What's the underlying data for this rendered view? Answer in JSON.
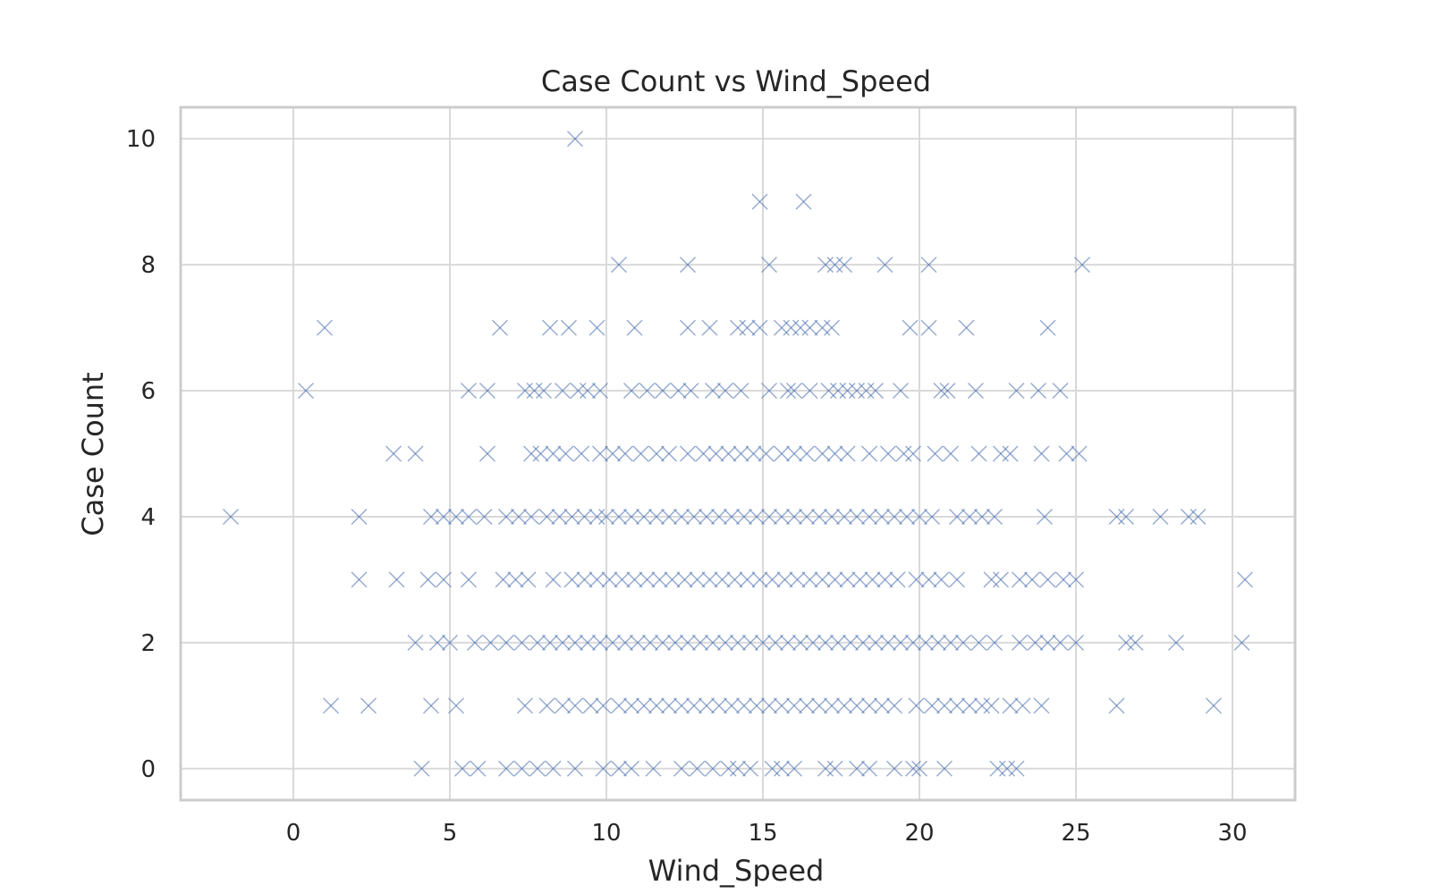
{
  "chart_data": {
    "type": "scatter",
    "title": "Case Count vs Wind_Speed",
    "xlabel": "Wind_Speed",
    "ylabel": "Case Count",
    "xlim": [
      -3.6,
      32
    ],
    "ylim": [
      -0.5,
      10.5
    ],
    "xticks": [
      0,
      5,
      10,
      15,
      20,
      25,
      30
    ],
    "yticks": [
      0,
      2,
      4,
      6,
      8,
      10
    ],
    "grid": true,
    "marker": "x",
    "color": "#4c72b0",
    "points": [
      {
        "x": 9.0,
        "y": 10
      },
      {
        "x": 14.9,
        "y": 9
      },
      {
        "x": 16.3,
        "y": 9
      },
      {
        "x": 10.4,
        "y": 8
      },
      {
        "x": 12.6,
        "y": 8
      },
      {
        "x": 15.2,
        "y": 8
      },
      {
        "x": 17.0,
        "y": 8
      },
      {
        "x": 17.3,
        "y": 8
      },
      {
        "x": 17.6,
        "y": 8
      },
      {
        "x": 18.9,
        "y": 8
      },
      {
        "x": 20.3,
        "y": 8
      },
      {
        "x": 25.2,
        "y": 8
      },
      {
        "x": 1.0,
        "y": 7
      },
      {
        "x": 6.6,
        "y": 7
      },
      {
        "x": 8.2,
        "y": 7
      },
      {
        "x": 8.8,
        "y": 7
      },
      {
        "x": 9.7,
        "y": 7
      },
      {
        "x": 10.9,
        "y": 7
      },
      {
        "x": 12.6,
        "y": 7
      },
      {
        "x": 13.3,
        "y": 7
      },
      {
        "x": 14.2,
        "y": 7
      },
      {
        "x": 14.5,
        "y": 7
      },
      {
        "x": 14.9,
        "y": 7
      },
      {
        "x": 15.6,
        "y": 7
      },
      {
        "x": 15.9,
        "y": 7
      },
      {
        "x": 16.2,
        "y": 7
      },
      {
        "x": 16.5,
        "y": 7
      },
      {
        "x": 16.9,
        "y": 7
      },
      {
        "x": 17.2,
        "y": 7
      },
      {
        "x": 19.7,
        "y": 7
      },
      {
        "x": 20.3,
        "y": 7
      },
      {
        "x": 21.5,
        "y": 7
      },
      {
        "x": 24.1,
        "y": 7
      },
      {
        "x": 0.4,
        "y": 6
      },
      {
        "x": 5.6,
        "y": 6
      },
      {
        "x": 6.2,
        "y": 6
      },
      {
        "x": 7.4,
        "y": 6
      },
      {
        "x": 7.7,
        "y": 6
      },
      {
        "x": 8.0,
        "y": 6
      },
      {
        "x": 8.6,
        "y": 6
      },
      {
        "x": 9.1,
        "y": 6
      },
      {
        "x": 9.4,
        "y": 6
      },
      {
        "x": 9.8,
        "y": 6
      },
      {
        "x": 10.8,
        "y": 6
      },
      {
        "x": 11.3,
        "y": 6
      },
      {
        "x": 11.8,
        "y": 6
      },
      {
        "x": 12.3,
        "y": 6
      },
      {
        "x": 12.7,
        "y": 6
      },
      {
        "x": 13.4,
        "y": 6
      },
      {
        "x": 13.8,
        "y": 6
      },
      {
        "x": 14.3,
        "y": 6
      },
      {
        "x": 15.2,
        "y": 6
      },
      {
        "x": 15.8,
        "y": 6
      },
      {
        "x": 16.0,
        "y": 6
      },
      {
        "x": 16.5,
        "y": 6
      },
      {
        "x": 17.1,
        "y": 6
      },
      {
        "x": 17.4,
        "y": 6
      },
      {
        "x": 17.7,
        "y": 6
      },
      {
        "x": 18.0,
        "y": 6
      },
      {
        "x": 18.3,
        "y": 6
      },
      {
        "x": 18.6,
        "y": 6
      },
      {
        "x": 19.4,
        "y": 6
      },
      {
        "x": 20.7,
        "y": 6
      },
      {
        "x": 20.9,
        "y": 6
      },
      {
        "x": 21.8,
        "y": 6
      },
      {
        "x": 23.1,
        "y": 6
      },
      {
        "x": 23.8,
        "y": 6
      },
      {
        "x": 24.5,
        "y": 6
      },
      {
        "x": 3.2,
        "y": 5
      },
      {
        "x": 3.9,
        "y": 5
      },
      {
        "x": 6.2,
        "y": 5
      },
      {
        "x": 7.6,
        "y": 5
      },
      {
        "x": 7.9,
        "y": 5
      },
      {
        "x": 8.3,
        "y": 5
      },
      {
        "x": 8.7,
        "y": 5
      },
      {
        "x": 9.2,
        "y": 5
      },
      {
        "x": 9.8,
        "y": 5
      },
      {
        "x": 10.2,
        "y": 5
      },
      {
        "x": 10.6,
        "y": 5
      },
      {
        "x": 11.1,
        "y": 5
      },
      {
        "x": 11.6,
        "y": 5
      },
      {
        "x": 12.0,
        "y": 5
      },
      {
        "x": 12.6,
        "y": 5
      },
      {
        "x": 13.1,
        "y": 5
      },
      {
        "x": 13.5,
        "y": 5
      },
      {
        "x": 13.9,
        "y": 5
      },
      {
        "x": 14.3,
        "y": 5
      },
      {
        "x": 14.7,
        "y": 5
      },
      {
        "x": 15.1,
        "y": 5
      },
      {
        "x": 15.6,
        "y": 5
      },
      {
        "x": 16.0,
        "y": 5
      },
      {
        "x": 16.4,
        "y": 5
      },
      {
        "x": 16.9,
        "y": 5
      },
      {
        "x": 17.3,
        "y": 5
      },
      {
        "x": 17.7,
        "y": 5
      },
      {
        "x": 18.4,
        "y": 5
      },
      {
        "x": 19.0,
        "y": 5
      },
      {
        "x": 19.5,
        "y": 5
      },
      {
        "x": 19.8,
        "y": 5
      },
      {
        "x": 20.5,
        "y": 5
      },
      {
        "x": 21.0,
        "y": 5
      },
      {
        "x": 21.9,
        "y": 5
      },
      {
        "x": 22.6,
        "y": 5
      },
      {
        "x": 22.9,
        "y": 5
      },
      {
        "x": 23.9,
        "y": 5
      },
      {
        "x": 24.7,
        "y": 5
      },
      {
        "x": 25.1,
        "y": 5
      },
      {
        "x": -2.0,
        "y": 4
      },
      {
        "x": 2.1,
        "y": 4
      },
      {
        "x": 4.4,
        "y": 4
      },
      {
        "x": 4.8,
        "y": 4
      },
      {
        "x": 5.2,
        "y": 4
      },
      {
        "x": 5.6,
        "y": 4
      },
      {
        "x": 6.1,
        "y": 4
      },
      {
        "x": 6.8,
        "y": 4
      },
      {
        "x": 7.2,
        "y": 4
      },
      {
        "x": 7.6,
        "y": 4
      },
      {
        "x": 8.1,
        "y": 4
      },
      {
        "x": 8.5,
        "y": 4
      },
      {
        "x": 8.9,
        "y": 4
      },
      {
        "x": 9.3,
        "y": 4
      },
      {
        "x": 9.7,
        "y": 4
      },
      {
        "x": 10.0,
        "y": 4
      },
      {
        "x": 10.4,
        "y": 4
      },
      {
        "x": 10.8,
        "y": 4
      },
      {
        "x": 11.2,
        "y": 4
      },
      {
        "x": 11.6,
        "y": 4
      },
      {
        "x": 12.0,
        "y": 4
      },
      {
        "x": 12.4,
        "y": 4
      },
      {
        "x": 12.8,
        "y": 4
      },
      {
        "x": 13.2,
        "y": 4
      },
      {
        "x": 13.6,
        "y": 4
      },
      {
        "x": 14.0,
        "y": 4
      },
      {
        "x": 14.4,
        "y": 4
      },
      {
        "x": 14.8,
        "y": 4
      },
      {
        "x": 15.2,
        "y": 4
      },
      {
        "x": 15.6,
        "y": 4
      },
      {
        "x": 16.0,
        "y": 4
      },
      {
        "x": 16.4,
        "y": 4
      },
      {
        "x": 16.8,
        "y": 4
      },
      {
        "x": 17.2,
        "y": 4
      },
      {
        "x": 17.6,
        "y": 4
      },
      {
        "x": 18.0,
        "y": 4
      },
      {
        "x": 18.4,
        "y": 4
      },
      {
        "x": 18.8,
        "y": 4
      },
      {
        "x": 19.2,
        "y": 4
      },
      {
        "x": 19.6,
        "y": 4
      },
      {
        "x": 20.0,
        "y": 4
      },
      {
        "x": 20.4,
        "y": 4
      },
      {
        "x": 21.2,
        "y": 4
      },
      {
        "x": 21.6,
        "y": 4
      },
      {
        "x": 22.0,
        "y": 4
      },
      {
        "x": 22.4,
        "y": 4
      },
      {
        "x": 24.0,
        "y": 4
      },
      {
        "x": 26.3,
        "y": 4
      },
      {
        "x": 26.6,
        "y": 4
      },
      {
        "x": 27.7,
        "y": 4
      },
      {
        "x": 28.6,
        "y": 4
      },
      {
        "x": 28.9,
        "y": 4
      },
      {
        "x": 2.1,
        "y": 3
      },
      {
        "x": 3.3,
        "y": 3
      },
      {
        "x": 4.3,
        "y": 3
      },
      {
        "x": 4.8,
        "y": 3
      },
      {
        "x": 5.6,
        "y": 3
      },
      {
        "x": 6.7,
        "y": 3
      },
      {
        "x": 7.1,
        "y": 3
      },
      {
        "x": 7.5,
        "y": 3
      },
      {
        "x": 8.3,
        "y": 3
      },
      {
        "x": 8.9,
        "y": 3
      },
      {
        "x": 9.3,
        "y": 3
      },
      {
        "x": 9.7,
        "y": 3
      },
      {
        "x": 10.1,
        "y": 3
      },
      {
        "x": 10.5,
        "y": 3
      },
      {
        "x": 10.9,
        "y": 3
      },
      {
        "x": 11.3,
        "y": 3
      },
      {
        "x": 11.7,
        "y": 3
      },
      {
        "x": 12.1,
        "y": 3
      },
      {
        "x": 12.5,
        "y": 3
      },
      {
        "x": 12.9,
        "y": 3
      },
      {
        "x": 13.3,
        "y": 3
      },
      {
        "x": 13.7,
        "y": 3
      },
      {
        "x": 14.1,
        "y": 3
      },
      {
        "x": 14.5,
        "y": 3
      },
      {
        "x": 14.9,
        "y": 3
      },
      {
        "x": 15.3,
        "y": 3
      },
      {
        "x": 15.7,
        "y": 3
      },
      {
        "x": 16.1,
        "y": 3
      },
      {
        "x": 16.5,
        "y": 3
      },
      {
        "x": 16.9,
        "y": 3
      },
      {
        "x": 17.3,
        "y": 3
      },
      {
        "x": 17.7,
        "y": 3
      },
      {
        "x": 18.1,
        "y": 3
      },
      {
        "x": 18.5,
        "y": 3
      },
      {
        "x": 18.9,
        "y": 3
      },
      {
        "x": 19.3,
        "y": 3
      },
      {
        "x": 19.9,
        "y": 3
      },
      {
        "x": 20.3,
        "y": 3
      },
      {
        "x": 20.7,
        "y": 3
      },
      {
        "x": 21.2,
        "y": 3
      },
      {
        "x": 22.3,
        "y": 3
      },
      {
        "x": 22.6,
        "y": 3
      },
      {
        "x": 23.2,
        "y": 3
      },
      {
        "x": 23.6,
        "y": 3
      },
      {
        "x": 24.1,
        "y": 3
      },
      {
        "x": 24.6,
        "y": 3
      },
      {
        "x": 25.0,
        "y": 3
      },
      {
        "x": 30.4,
        "y": 3
      },
      {
        "x": 3.9,
        "y": 2
      },
      {
        "x": 4.6,
        "y": 2
      },
      {
        "x": 5.0,
        "y": 2
      },
      {
        "x": 5.8,
        "y": 2
      },
      {
        "x": 6.3,
        "y": 2
      },
      {
        "x": 6.8,
        "y": 2
      },
      {
        "x": 7.3,
        "y": 2
      },
      {
        "x": 7.8,
        "y": 2
      },
      {
        "x": 8.2,
        "y": 2
      },
      {
        "x": 8.6,
        "y": 2
      },
      {
        "x": 9.0,
        "y": 2
      },
      {
        "x": 9.4,
        "y": 2
      },
      {
        "x": 9.8,
        "y": 2
      },
      {
        "x": 10.2,
        "y": 2
      },
      {
        "x": 10.6,
        "y": 2
      },
      {
        "x": 11.0,
        "y": 2
      },
      {
        "x": 11.4,
        "y": 2
      },
      {
        "x": 11.8,
        "y": 2
      },
      {
        "x": 12.2,
        "y": 2
      },
      {
        "x": 12.6,
        "y": 2
      },
      {
        "x": 13.0,
        "y": 2
      },
      {
        "x": 13.4,
        "y": 2
      },
      {
        "x": 13.8,
        "y": 2
      },
      {
        "x": 14.2,
        "y": 2
      },
      {
        "x": 14.6,
        "y": 2
      },
      {
        "x": 15.0,
        "y": 2
      },
      {
        "x": 15.4,
        "y": 2
      },
      {
        "x": 15.8,
        "y": 2
      },
      {
        "x": 16.2,
        "y": 2
      },
      {
        "x": 16.6,
        "y": 2
      },
      {
        "x": 17.0,
        "y": 2
      },
      {
        "x": 17.4,
        "y": 2
      },
      {
        "x": 17.8,
        "y": 2
      },
      {
        "x": 18.2,
        "y": 2
      },
      {
        "x": 18.6,
        "y": 2
      },
      {
        "x": 19.0,
        "y": 2
      },
      {
        "x": 19.4,
        "y": 2
      },
      {
        "x": 19.8,
        "y": 2
      },
      {
        "x": 20.2,
        "y": 2
      },
      {
        "x": 20.6,
        "y": 2
      },
      {
        "x": 21.0,
        "y": 2
      },
      {
        "x": 21.4,
        "y": 2
      },
      {
        "x": 21.9,
        "y": 2
      },
      {
        "x": 22.4,
        "y": 2
      },
      {
        "x": 23.2,
        "y": 2
      },
      {
        "x": 23.7,
        "y": 2
      },
      {
        "x": 24.1,
        "y": 2
      },
      {
        "x": 24.5,
        "y": 2
      },
      {
        "x": 25.0,
        "y": 2
      },
      {
        "x": 26.6,
        "y": 2
      },
      {
        "x": 26.9,
        "y": 2
      },
      {
        "x": 28.2,
        "y": 2
      },
      {
        "x": 30.3,
        "y": 2
      },
      {
        "x": 1.2,
        "y": 1
      },
      {
        "x": 2.4,
        "y": 1
      },
      {
        "x": 4.4,
        "y": 1
      },
      {
        "x": 5.2,
        "y": 1
      },
      {
        "x": 7.4,
        "y": 1
      },
      {
        "x": 8.1,
        "y": 1
      },
      {
        "x": 8.6,
        "y": 1
      },
      {
        "x": 9.0,
        "y": 1
      },
      {
        "x": 9.5,
        "y": 1
      },
      {
        "x": 9.9,
        "y": 1
      },
      {
        "x": 10.4,
        "y": 1
      },
      {
        "x": 10.8,
        "y": 1
      },
      {
        "x": 11.2,
        "y": 1
      },
      {
        "x": 11.6,
        "y": 1
      },
      {
        "x": 12.0,
        "y": 1
      },
      {
        "x": 12.4,
        "y": 1
      },
      {
        "x": 12.8,
        "y": 1
      },
      {
        "x": 13.2,
        "y": 1
      },
      {
        "x": 13.6,
        "y": 1
      },
      {
        "x": 14.0,
        "y": 1
      },
      {
        "x": 14.4,
        "y": 1
      },
      {
        "x": 14.8,
        "y": 1
      },
      {
        "x": 15.2,
        "y": 1
      },
      {
        "x": 15.6,
        "y": 1
      },
      {
        "x": 16.0,
        "y": 1
      },
      {
        "x": 16.4,
        "y": 1
      },
      {
        "x": 16.8,
        "y": 1
      },
      {
        "x": 17.2,
        "y": 1
      },
      {
        "x": 17.6,
        "y": 1
      },
      {
        "x": 18.0,
        "y": 1
      },
      {
        "x": 18.4,
        "y": 1
      },
      {
        "x": 18.8,
        "y": 1
      },
      {
        "x": 19.2,
        "y": 1
      },
      {
        "x": 19.9,
        "y": 1
      },
      {
        "x": 20.4,
        "y": 1
      },
      {
        "x": 20.8,
        "y": 1
      },
      {
        "x": 21.2,
        "y": 1
      },
      {
        "x": 21.6,
        "y": 1
      },
      {
        "x": 22.0,
        "y": 1
      },
      {
        "x": 22.3,
        "y": 1
      },
      {
        "x": 22.9,
        "y": 1
      },
      {
        "x": 23.3,
        "y": 1
      },
      {
        "x": 23.9,
        "y": 1
      },
      {
        "x": 26.3,
        "y": 1
      },
      {
        "x": 29.4,
        "y": 1
      },
      {
        "x": 4.1,
        "y": 0
      },
      {
        "x": 5.4,
        "y": 0
      },
      {
        "x": 5.9,
        "y": 0
      },
      {
        "x": 6.8,
        "y": 0
      },
      {
        "x": 7.3,
        "y": 0
      },
      {
        "x": 7.8,
        "y": 0
      },
      {
        "x": 8.3,
        "y": 0
      },
      {
        "x": 9.0,
        "y": 0
      },
      {
        "x": 9.9,
        "y": 0
      },
      {
        "x": 10.4,
        "y": 0
      },
      {
        "x": 10.8,
        "y": 0
      },
      {
        "x": 11.5,
        "y": 0
      },
      {
        "x": 12.4,
        "y": 0
      },
      {
        "x": 12.9,
        "y": 0
      },
      {
        "x": 13.4,
        "y": 0
      },
      {
        "x": 13.9,
        "y": 0
      },
      {
        "x": 14.2,
        "y": 0
      },
      {
        "x": 14.6,
        "y": 0
      },
      {
        "x": 15.3,
        "y": 0
      },
      {
        "x": 15.6,
        "y": 0
      },
      {
        "x": 16.0,
        "y": 0
      },
      {
        "x": 17.0,
        "y": 0
      },
      {
        "x": 17.3,
        "y": 0
      },
      {
        "x": 18.0,
        "y": 0
      },
      {
        "x": 18.4,
        "y": 0
      },
      {
        "x": 19.2,
        "y": 0
      },
      {
        "x": 19.8,
        "y": 0
      },
      {
        "x": 20.0,
        "y": 0
      },
      {
        "x": 20.8,
        "y": 0
      },
      {
        "x": 22.5,
        "y": 0
      },
      {
        "x": 22.8,
        "y": 0
      },
      {
        "x": 23.1,
        "y": 0
      }
    ]
  }
}
